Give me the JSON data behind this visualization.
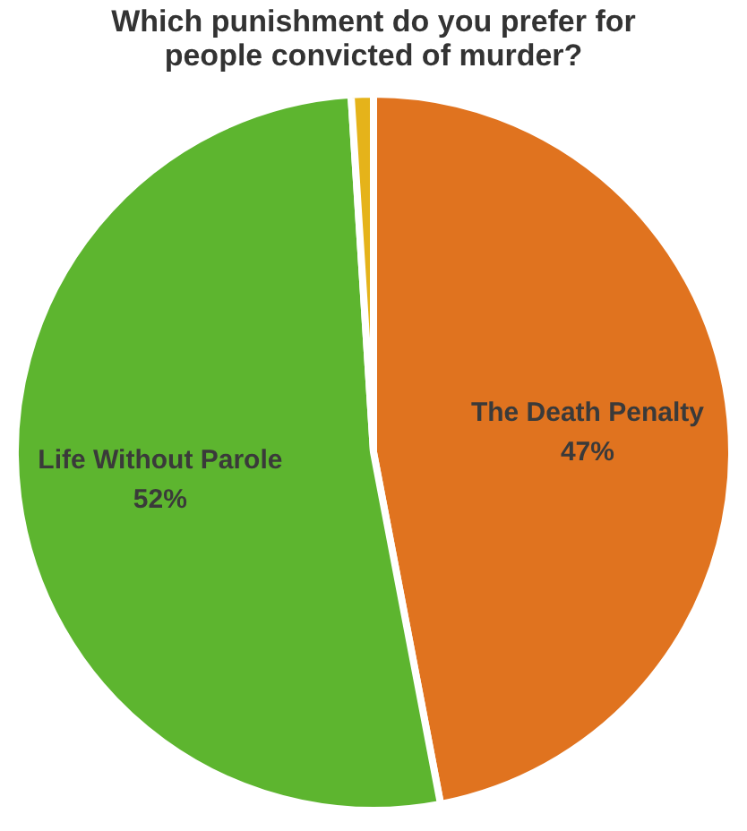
{
  "chart_data": {
    "type": "pie",
    "title": [
      "Which punishment do you prefer for",
      "people convicted of murder?"
    ],
    "categories": [
      "The Death Penalty",
      "Life Without Parole",
      null
    ],
    "values": [
      47,
      52,
      1
    ],
    "value_labels": [
      "47%",
      "52%",
      null
    ],
    "colors": [
      "#e0731f",
      "#5db52f",
      "#e5b31a"
    ],
    "legend": false
  }
}
